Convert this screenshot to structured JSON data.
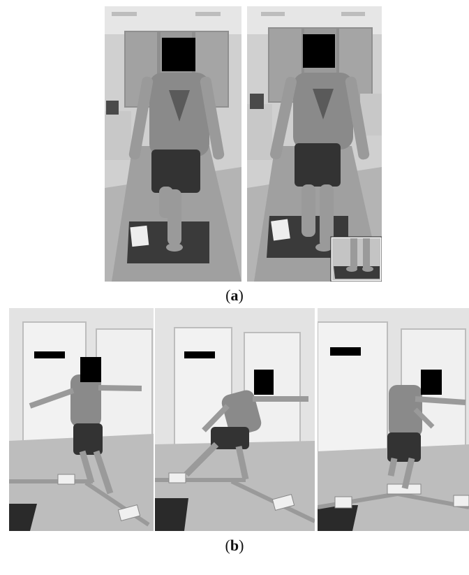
{
  "figure": {
    "panel_a": {
      "label": "(a)",
      "letter": "a"
    },
    "panel_b": {
      "label": "(b)",
      "letter": "b"
    }
  },
  "colors": {
    "floor": "#bdbdbd",
    "wall": "#e3e3e3",
    "window": "#8f8f8f",
    "mat": "#3a3a3a",
    "censor": "#000000",
    "skin": "#9a9a9a",
    "shirt": "#8a8a8a",
    "shorts": "#333333"
  }
}
